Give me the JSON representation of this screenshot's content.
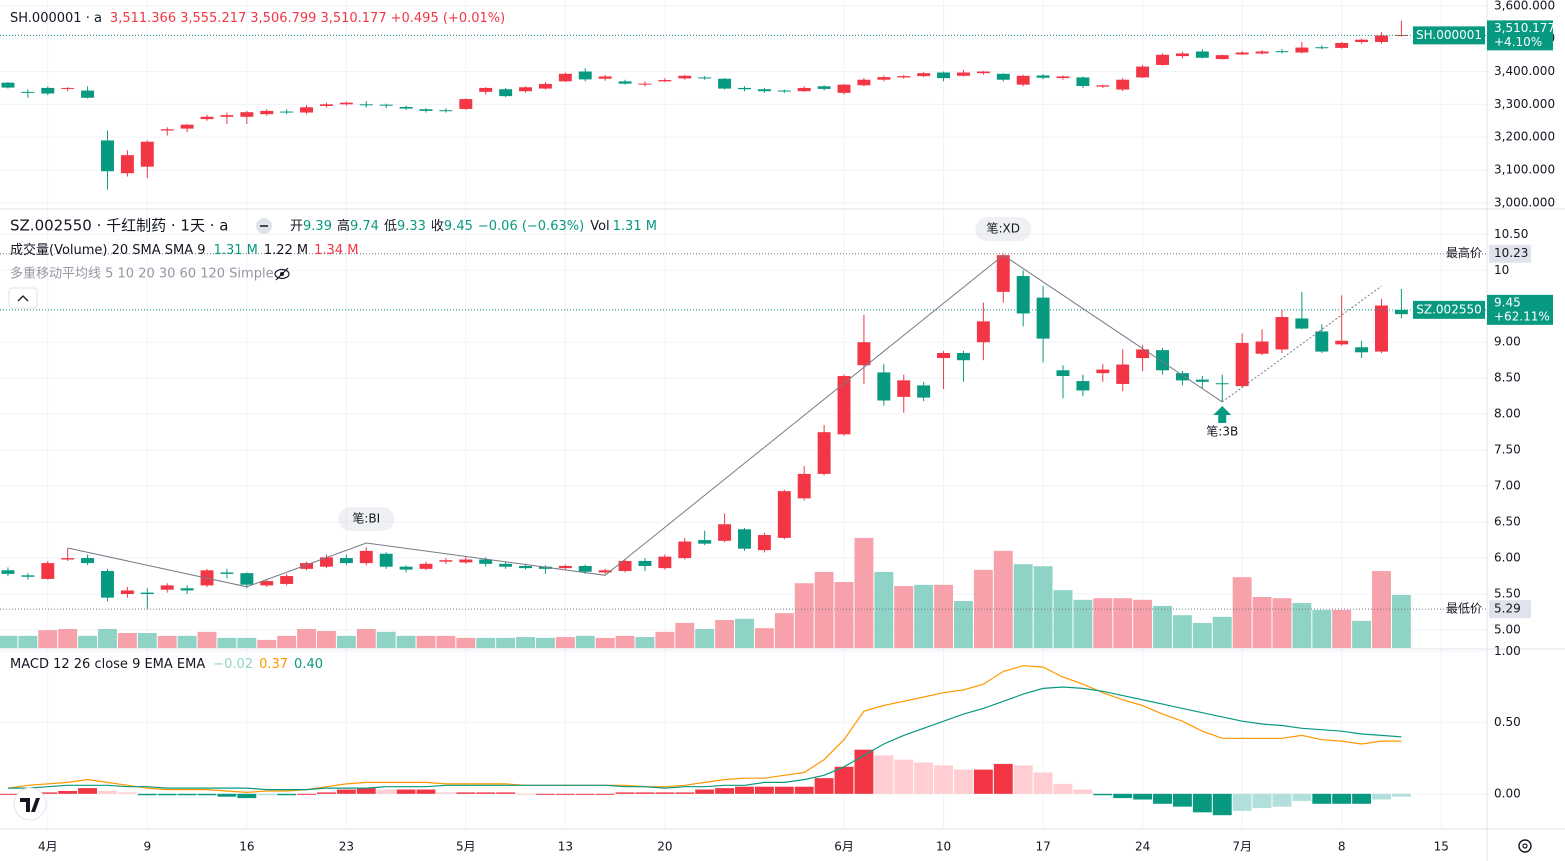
{
  "x_axis": {
    "xlim": [
      -0.4,
      74.3
    ],
    "xticks": [
      {
        "value": 2,
        "label": "4月"
      },
      {
        "value": 7,
        "label": "9"
      },
      {
        "value": 12,
        "label": "16"
      },
      {
        "value": 17,
        "label": "23"
      },
      {
        "value": 23,
        "label": "5月"
      },
      {
        "value": 28,
        "label": "13"
      },
      {
        "value": 33,
        "label": "20"
      },
      {
        "value": 42,
        "label": "6月"
      },
      {
        "value": 47,
        "label": "10"
      },
      {
        "value": 52,
        "label": "17"
      },
      {
        "value": 57,
        "label": "24"
      },
      {
        "value": 62,
        "label": "7月"
      },
      {
        "value": 67,
        "label": "8"
      },
      {
        "value": 72,
        "label": "15"
      }
    ]
  },
  "chart_data": [
    {
      "type": "candlestick",
      "title": "SH.000001 · a",
      "header_values": [
        "3,511.366",
        "3,555.217",
        "3,506.799",
        "3,510.177",
        "+0.495 (+0.01%)"
      ],
      "up_color": "#f23645",
      "down_color": "#089981",
      "grid": true,
      "ylim": [
        2984,
        3618
      ],
      "yticks": [
        {
          "value": 3600,
          "label": "3,600.000"
        },
        {
          "value": 3500,
          "label": "3,500.000"
        },
        {
          "value": 3400,
          "label": "3,400.000"
        },
        {
          "value": 3300,
          "label": "3,300.000"
        },
        {
          "value": 3200,
          "label": "3,200.000"
        },
        {
          "value": 3100,
          "label": "3,100.000"
        },
        {
          "value": 3000,
          "label": "3,000.000"
        }
      ],
      "open": [
        3366,
        3338,
        3350,
        3347,
        3342,
        3190,
        3090,
        3110,
        3220,
        3226,
        3255,
        3262,
        3262,
        3270,
        3278,
        3275,
        3295,
        3300,
        3298,
        3299,
        3292,
        3285,
        3282,
        3286,
        3338,
        3346,
        3340,
        3348,
        3370,
        3400,
        3378,
        3370,
        3360,
        3370,
        3379,
        3382,
        3378,
        3350,
        3346,
        3342,
        3340,
        3355,
        3335,
        3358,
        3375,
        3382,
        3386,
        3397,
        3387,
        3395,
        3393,
        3360,
        3388,
        3380,
        3382,
        3354,
        3345,
        3382,
        3420,
        3447,
        3461,
        3438,
        3452,
        3455,
        3462,
        3458,
        3474,
        3472,
        3490,
        3490,
        3511.366
      ],
      "high": [
        3368,
        3345,
        3355,
        3352,
        3355,
        3220,
        3160,
        3190,
        3230,
        3240,
        3268,
        3275,
        3280,
        3285,
        3285,
        3298,
        3305,
        3308,
        3310,
        3302,
        3296,
        3288,
        3288,
        3318,
        3352,
        3350,
        3355,
        3368,
        3397,
        3410,
        3390,
        3375,
        3370,
        3380,
        3390,
        3386,
        3380,
        3355,
        3350,
        3345,
        3355,
        3358,
        3362,
        3380,
        3388,
        3390,
        3398,
        3400,
        3405,
        3402,
        3395,
        3390,
        3392,
        3388,
        3385,
        3360,
        3380,
        3420,
        3455,
        3460,
        3468,
        3452,
        3462,
        3465,
        3468,
        3490,
        3480,
        3490,
        3500,
        3520,
        3555.217
      ],
      "low": [
        3348,
        3320,
        3328,
        3340,
        3318,
        3040,
        3080,
        3075,
        3205,
        3215,
        3250,
        3240,
        3240,
        3265,
        3270,
        3270,
        3290,
        3296,
        3290,
        3288,
        3283,
        3275,
        3275,
        3283,
        3330,
        3322,
        3336,
        3345,
        3368,
        3370,
        3372,
        3360,
        3355,
        3368,
        3375,
        3375,
        3345,
        3340,
        3335,
        3335,
        3338,
        3342,
        3330,
        3355,
        3370,
        3378,
        3383,
        3370,
        3385,
        3390,
        3370,
        3355,
        3376,
        3375,
        3350,
        3350,
        3340,
        3380,
        3418,
        3440,
        3440,
        3436,
        3450,
        3452,
        3455,
        3455,
        3468,
        3470,
        3485,
        3485,
        3506.799
      ],
      "close": [
        3351,
        3335,
        3333,
        3350,
        3320,
        3096,
        3145,
        3186,
        3224,
        3238,
        3262,
        3267,
        3276,
        3280,
        3276,
        3291,
        3300,
        3305,
        3300,
        3296,
        3287,
        3280,
        3279,
        3316,
        3350,
        3325,
        3352,
        3362,
        3393,
        3376,
        3385,
        3363,
        3363,
        3374,
        3387,
        3380,
        3348,
        3346,
        3340,
        3339,
        3350,
        3347,
        3360,
        3375,
        3383,
        3386,
        3395,
        3380,
        3397,
        3400,
        3375,
        3387,
        3381,
        3385,
        3356,
        3358,
        3375,
        3415,
        3451,
        3455,
        3442,
        3450,
        3458,
        3461,
        3460,
        3473,
        3472,
        3487,
        3497,
        3509.682,
        3510.177
      ],
      "last_tag": {
        "symbol": "SH.000001",
        "price": "3,510.177",
        "change": "+4.10%"
      }
    },
    {
      "type": "candlestick",
      "title": "SZ.002550 · 千红制药 · 1天 · a",
      "ohlc_header": [
        {
          "label": "开",
          "value": "9.39"
        },
        {
          "label": "高",
          "value": "9.74"
        },
        {
          "label": "低",
          "value": "9.33"
        },
        {
          "label": "收",
          "value": "9.45"
        }
      ],
      "change": "−0.06 (−0.63%)",
      "vol_label": "Vol",
      "vol_value": "1.31 M",
      "ma_legend": "多重移动平均线 5 10 20 30 60 120 Simple",
      "up_color": "#f23645",
      "down_color": "#089981",
      "grid": true,
      "ylim": [
        4.75,
        10.81
      ],
      "yticks": [
        {
          "value": 10.5,
          "label": "10.50"
        },
        10,
        {
          "value": 9,
          "label": "9.00"
        },
        {
          "value": 8.5,
          "label": "8.50"
        },
        {
          "value": 8,
          "label": "8.00"
        },
        {
          "value": 7.5,
          "label": "7.50"
        },
        {
          "value": 7,
          "label": "7.00"
        },
        {
          "value": 6.5,
          "label": "6.50"
        },
        {
          "value": 6,
          "label": "6.00"
        },
        {
          "value": 5.5,
          "label": "5.50"
        },
        {
          "value": 5,
          "label": "5.00"
        }
      ],
      "open": [
        5.83,
        5.76,
        5.71,
        5.98,
        6.0,
        5.82,
        5.5,
        5.52,
        5.56,
        5.58,
        5.62,
        5.8,
        5.79,
        5.62,
        5.64,
        5.85,
        5.88,
        6.0,
        5.93,
        6.06,
        5.88,
        5.85,
        5.95,
        5.94,
        5.98,
        5.92,
        5.89,
        5.88,
        5.86,
        5.89,
        5.8,
        5.82,
        5.96,
        5.86,
        6.0,
        6.25,
        6.24,
        6.4,
        6.11,
        6.28,
        6.83,
        7.17,
        7.72,
        8.68,
        8.58,
        8.24,
        8.4,
        8.78,
        8.85,
        9.0,
        9.7,
        9.92,
        9.62,
        8.61,
        8.46,
        8.57,
        8.42,
        8.78,
        8.89,
        8.57,
        8.48,
        8.43,
        8.39,
        8.84,
        8.9,
        9.33,
        9.15,
        8.97,
        8.93,
        8.87,
        9.39
      ],
      "high": [
        5.87,
        5.79,
        5.96,
        6.14,
        6.05,
        5.85,
        5.6,
        5.58,
        5.65,
        5.62,
        5.85,
        5.85,
        5.8,
        5.7,
        5.78,
        5.95,
        6.05,
        6.05,
        6.15,
        6.08,
        5.9,
        5.95,
        6.0,
        6.02,
        6.01,
        5.95,
        5.92,
        5.9,
        5.91,
        5.91,
        5.85,
        5.98,
        6.0,
        6.05,
        6.28,
        6.38,
        6.62,
        6.42,
        6.35,
        6.95,
        7.28,
        7.85,
        8.55,
        9.38,
        8.7,
        8.55,
        8.45,
        8.88,
        8.88,
        9.55,
        10.23,
        10.0,
        9.78,
        8.68,
        8.55,
        8.7,
        8.9,
        8.96,
        8.92,
        8.6,
        8.53,
        8.55,
        9.12,
        9.18,
        9.45,
        9.7,
        9.25,
        9.65,
        9.02,
        9.6,
        9.74
      ],
      "low": [
        5.75,
        5.7,
        5.7,
        5.96,
        5.9,
        5.4,
        5.45,
        5.29,
        5.52,
        5.5,
        5.6,
        5.72,
        5.58,
        5.6,
        5.62,
        5.83,
        5.86,
        5.9,
        5.9,
        5.85,
        5.8,
        5.83,
        5.92,
        5.92,
        5.88,
        5.85,
        5.84,
        5.78,
        5.84,
        5.78,
        5.78,
        5.8,
        5.82,
        5.84,
        5.98,
        6.18,
        6.22,
        6.1,
        6.08,
        6.26,
        6.8,
        7.15,
        7.7,
        8.42,
        8.12,
        8.02,
        8.18,
        8.35,
        8.45,
        8.75,
        9.55,
        9.22,
        8.72,
        8.22,
        8.25,
        8.45,
        8.32,
        8.6,
        8.55,
        8.4,
        8.35,
        8.18,
        8.37,
        8.82,
        8.85,
        9.18,
        8.85,
        8.95,
        8.78,
        8.85,
        9.33
      ],
      "close": [
        5.78,
        5.74,
        5.93,
        6.0,
        5.93,
        5.45,
        5.55,
        5.5,
        5.62,
        5.55,
        5.83,
        5.78,
        5.63,
        5.68,
        5.75,
        5.93,
        6.01,
        5.93,
        6.1,
        5.88,
        5.84,
        5.92,
        5.97,
        5.98,
        5.92,
        5.88,
        5.86,
        5.85,
        5.89,
        5.81,
        5.83,
        5.96,
        5.89,
        6.02,
        6.23,
        6.2,
        6.47,
        6.13,
        6.32,
        6.93,
        7.17,
        7.75,
        8.53,
        9.0,
        8.19,
        8.47,
        8.23,
        8.85,
        8.75,
        9.29,
        10.21,
        9.4,
        9.05,
        8.53,
        8.33,
        8.62,
        8.69,
        8.9,
        8.61,
        8.47,
        8.45,
        8.42,
        8.99,
        9.01,
        9.35,
        9.19,
        8.87,
        9.02,
        8.86,
        9.51,
        9.45
      ],
      "pen": {
        "x": [
          3,
          12,
          18,
          30,
          50,
          61,
          69
        ],
        "y": [
          6.14,
          5.6,
          6.21,
          5.76,
          10.21,
          8.17,
          9.78
        ]
      },
      "pen_labels": [
        "笔:BI",
        "笔:XD",
        "笔:3B"
      ],
      "extremes": [
        {
          "label": "最高价",
          "value": 10.23
        },
        {
          "label": "最低价",
          "value": 5.29
        }
      ],
      "last_tag": {
        "symbol": "SZ.002550",
        "price": "9.45",
        "change": "+62.11%"
      }
    },
    {
      "type": "bar",
      "legend_title": "成交量(Volume) 20 SMA SMA 9",
      "legend_values": [
        "1.31 M",
        "1.22 M",
        "1.34 M"
      ],
      "up_color": "#f7a1aa",
      "down_color": "#8fd3c6",
      "ylim": [
        0,
        10.77
      ],
      "values": [
        0.3,
        0.3,
        0.44,
        0.47,
        0.3,
        0.47,
        0.37,
        0.37,
        0.3,
        0.3,
        0.4,
        0.25,
        0.25,
        0.2,
        0.3,
        0.47,
        0.42,
        0.3,
        0.47,
        0.4,
        0.3,
        0.3,
        0.3,
        0.25,
        0.25,
        0.25,
        0.27,
        0.25,
        0.27,
        0.3,
        0.25,
        0.3,
        0.27,
        0.4,
        0.62,
        0.47,
        0.69,
        0.72,
        0.49,
        0.86,
        1.6,
        1.88,
        1.63,
        2.72,
        1.88,
        1.53,
        1.56,
        1.56,
        1.16,
        1.93,
        2.4,
        2.07,
        2.02,
        1.43,
        1.19,
        1.23,
        1.23,
        1.19,
        1.04,
        0.81,
        0.62,
        0.77,
        1.75,
        1.26,
        1.23,
        1.11,
        0.94,
        0.94,
        0.67,
        1.9,
        1.31
      ]
    },
    {
      "type": "macd",
      "legend_title": "MACD 12 26 close 9 EMA EMA",
      "legend_values": [
        "−0.02",
        "0.37",
        "0.40"
      ],
      "grid": true,
      "ylim": [
        -0.24,
        1.01
      ],
      "yticks": [
        {
          "value": 1,
          "label": "1.00"
        },
        {
          "value": 0.5,
          "label": "0.50"
        },
        {
          "value": 0,
          "label": "0.00"
        }
      ],
      "histogram": {
        "colors": [
          "#f23645",
          "#ffcdd2",
          "#089981",
          "#b2dfdb"
        ],
        "values": [
          0.0,
          0.01,
          0.01,
          0.02,
          0.04,
          0.02,
          0.01,
          -0.01,
          -0.01,
          -0.01,
          -0.01,
          -0.02,
          -0.03,
          -0.01,
          -0.01,
          0.0,
          0.01,
          0.03,
          0.04,
          0.03,
          0.03,
          0.03,
          0.01,
          0.01,
          0.01,
          0.01,
          0.0,
          0.0,
          0.0,
          0.0,
          0.0,
          0.01,
          0.01,
          0.01,
          0.01,
          0.03,
          0.04,
          0.05,
          0.05,
          0.05,
          0.05,
          0.11,
          0.19,
          0.31,
          0.27,
          0.24,
          0.22,
          0.2,
          0.17,
          0.17,
          0.21,
          0.2,
          0.15,
          0.07,
          0.03,
          -0.01,
          -0.03,
          -0.04,
          -0.07,
          -0.09,
          -0.13,
          -0.15,
          -0.12,
          -0.1,
          -0.09,
          -0.05,
          -0.07,
          -0.07,
          -0.07,
          -0.04,
          -0.02
        ]
      },
      "macd": {
        "color": "#ff9800",
        "values": [
          0.04,
          0.06,
          0.07,
          0.08,
          0.1,
          0.08,
          0.06,
          0.04,
          0.03,
          0.03,
          0.03,
          0.02,
          0.01,
          0.02,
          0.02,
          0.03,
          0.05,
          0.07,
          0.08,
          0.08,
          0.08,
          0.08,
          0.07,
          0.07,
          0.07,
          0.07,
          0.06,
          0.06,
          0.06,
          0.06,
          0.06,
          0.06,
          0.05,
          0.05,
          0.06,
          0.08,
          0.1,
          0.11,
          0.11,
          0.13,
          0.15,
          0.24,
          0.38,
          0.58,
          0.62,
          0.65,
          0.68,
          0.71,
          0.73,
          0.77,
          0.86,
          0.9,
          0.89,
          0.82,
          0.77,
          0.71,
          0.66,
          0.62,
          0.56,
          0.51,
          0.44,
          0.39,
          0.39,
          0.39,
          0.39,
          0.41,
          0.38,
          0.37,
          0.35,
          0.37,
          0.37
        ]
      },
      "signal": {
        "color": "#089981",
        "values": [
          0.04,
          0.04,
          0.05,
          0.06,
          0.06,
          0.06,
          0.05,
          0.05,
          0.04,
          0.04,
          0.04,
          0.04,
          0.04,
          0.03,
          0.03,
          0.03,
          0.04,
          0.04,
          0.04,
          0.05,
          0.05,
          0.05,
          0.06,
          0.06,
          0.06,
          0.06,
          0.06,
          0.06,
          0.06,
          0.06,
          0.06,
          0.05,
          0.05,
          0.04,
          0.05,
          0.05,
          0.06,
          0.06,
          0.08,
          0.08,
          0.1,
          0.13,
          0.19,
          0.27,
          0.35,
          0.41,
          0.46,
          0.51,
          0.56,
          0.6,
          0.65,
          0.7,
          0.74,
          0.75,
          0.74,
          0.72,
          0.69,
          0.66,
          0.63,
          0.6,
          0.57,
          0.54,
          0.51,
          0.49,
          0.48,
          0.46,
          0.45,
          0.44,
          0.42,
          0.41,
          0.4
        ]
      }
    }
  ]
}
